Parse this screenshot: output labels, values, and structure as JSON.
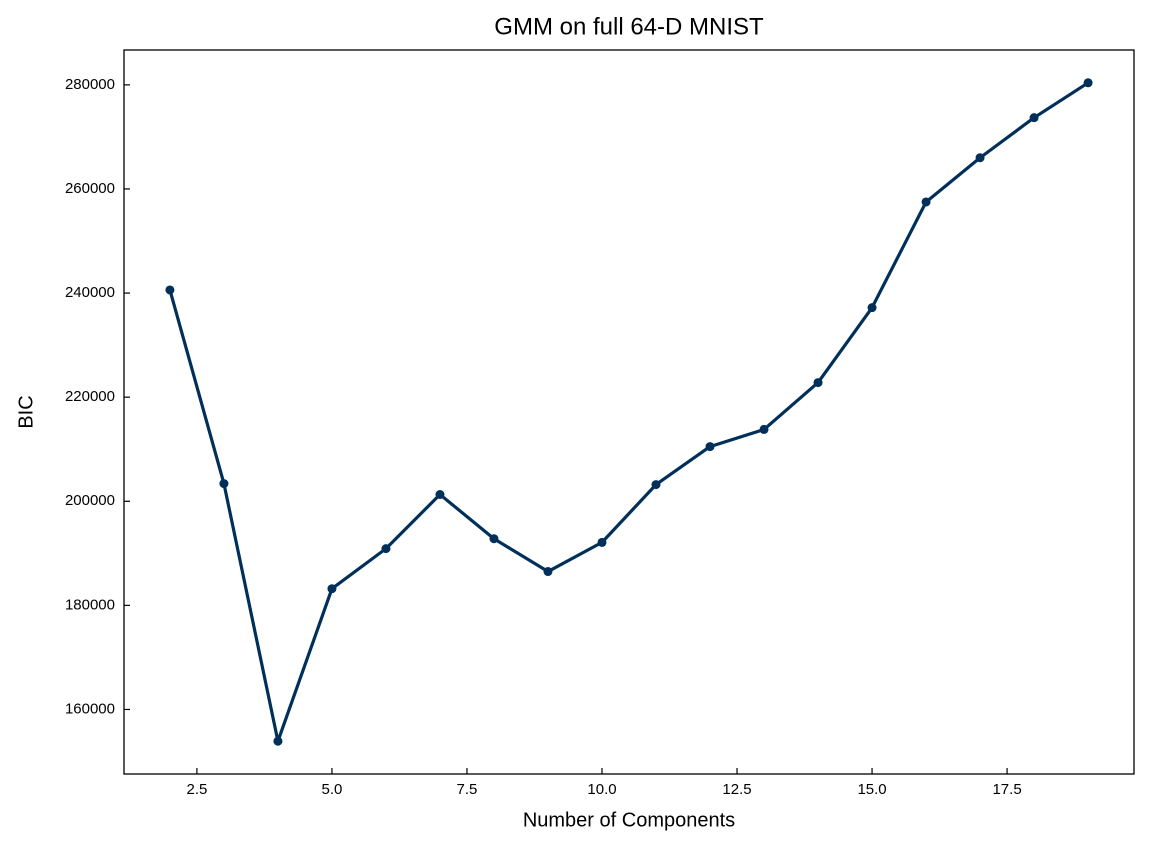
{
  "chart_data": {
    "type": "line",
    "title": "GMM on full 64-D MNIST",
    "x_label": "Number of Components",
    "y_label": "BIC",
    "x": [
      2,
      3,
      4,
      5,
      6,
      7,
      8,
      9,
      10,
      11,
      12,
      13,
      14,
      15,
      16,
      17,
      18,
      19
    ],
    "series": [
      {
        "name": "BIC",
        "color": "#00305a",
        "values": [
          240600,
          203400,
          153900,
          183200,
          190900,
          201300,
          192800,
          186500,
          192100,
          203200,
          210500,
          213800,
          222800,
          237200,
          257500,
          266000,
          273700,
          280400
        ]
      }
    ],
    "xlim": [
      1.15,
      19.85
    ],
    "xticks": [
      2.5,
      {
        "value": 5,
        "label": "5.0"
      },
      7.5,
      {
        "value": 10,
        "label": "10.0"
      },
      12.5,
      {
        "value": 15,
        "label": "15.0"
      },
      17.5
    ],
    "ylim": [
      147600,
      286700
    ],
    "yticks": [
      160000,
      180000,
      200000,
      220000,
      240000,
      260000,
      280000
    ],
    "markers": true
  }
}
